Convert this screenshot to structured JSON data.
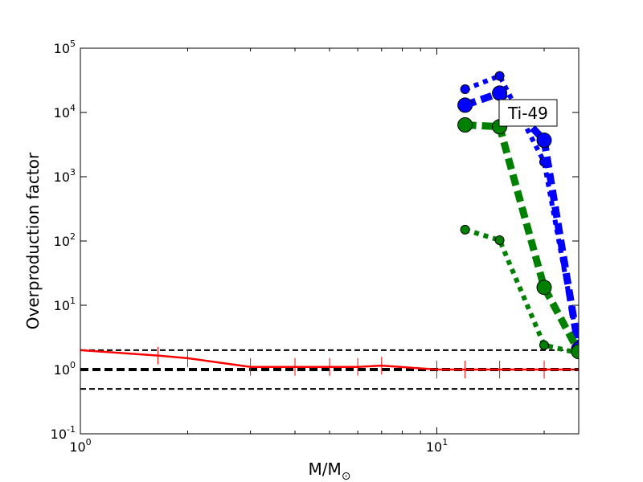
{
  "chart_data": {
    "type": "line",
    "title": "",
    "xlabel": "M/M",
    "xlabel_subscript": "⊙",
    "ylabel": "Overproduction factor",
    "xscale": "log",
    "yscale": "log",
    "xlim": [
      1,
      25
    ],
    "ylim": [
      0.1,
      100000
    ],
    "x_ticks": [
      {
        "value": 1,
        "base": "10",
        "exp": "0"
      },
      {
        "value": 10,
        "base": "10",
        "exp": "1"
      }
    ],
    "y_ticks": [
      {
        "value": 0.1,
        "base": "10",
        "exp": "-1"
      },
      {
        "value": 1,
        "base": "10",
        "exp": "0"
      },
      {
        "value": 10,
        "base": "10",
        "exp": "1"
      },
      {
        "value": 100,
        "base": "10",
        "exp": "2"
      },
      {
        "value": 1000,
        "base": "10",
        "exp": "3"
      },
      {
        "value": 10000,
        "base": "10",
        "exp": "4"
      },
      {
        "value": 100000,
        "base": "10",
        "exp": "5"
      }
    ],
    "annotation": "Ti-49",
    "reference_lines": [
      {
        "y": 2,
        "style": "dashed",
        "color": "#000000",
        "width": "thin"
      },
      {
        "y": 1,
        "style": "dashed",
        "color": "#000000",
        "width": "thick"
      },
      {
        "y": 0.5,
        "style": "dashed",
        "color": "#000000",
        "width": "thin"
      }
    ],
    "series": [
      {
        "color": "#ff0000",
        "style": "solid",
        "marker": "vertical-tick",
        "x": [
          1,
          1.65,
          2,
          3,
          4,
          5,
          6,
          7,
          10,
          12,
          15,
          20,
          25
        ],
        "y": [
          2.0,
          1.65,
          1.5,
          1.1,
          1.1,
          1.1,
          1.1,
          1.15,
          1.0,
          1.0,
          1.0,
          1.0,
          1.0
        ]
      },
      {
        "color": "#0000ff",
        "style": "dotted",
        "marker": "circle-small",
        "x": [
          12,
          15,
          20,
          25
        ],
        "y": [
          23000,
          37000,
          1700,
          2.2
        ]
      },
      {
        "color": "#0000ff",
        "style": "dashed",
        "marker": "circle-large",
        "x": [
          12,
          15,
          20,
          25
        ],
        "y": [
          13000,
          20000,
          3700,
          2.1
        ]
      },
      {
        "color": "#008000",
        "style": "dotted",
        "marker": "circle-small",
        "x": [
          12,
          15,
          20,
          25
        ],
        "y": [
          150,
          103,
          2.4,
          1.8
        ]
      },
      {
        "color": "#008000",
        "style": "dashed",
        "marker": "circle-large",
        "x": [
          12,
          15,
          20,
          25
        ],
        "y": [
          6400,
          6000,
          19,
          1.9
        ]
      }
    ]
  }
}
